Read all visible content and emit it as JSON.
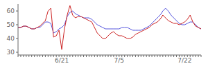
{
  "chart_data": {
    "type": "line",
    "categories": [
      null,
      null,
      null,
      null,
      null,
      null,
      null,
      null,
      null,
      null,
      null,
      null,
      null,
      null,
      null,
      null,
      "6/21",
      null,
      null,
      null,
      null,
      null,
      null,
      null,
      null,
      null,
      null,
      null,
      null,
      null,
      null,
      null,
      null,
      null,
      null,
      null,
      null,
      "7/5",
      null,
      null,
      null,
      null,
      null,
      null,
      null,
      null,
      null,
      null,
      null,
      null,
      null,
      null,
      null,
      null,
      null,
      null,
      null,
      null,
      null,
      null,
      null,
      "7/22",
      null,
      null,
      null,
      null,
      null,
      null
    ],
    "series": [
      {
        "color": "#5555dd",
        "values": [
          48,
          48,
          49,
          49,
          48,
          47,
          47,
          48,
          48,
          50,
          52,
          52,
          51,
          44,
          45,
          47,
          48,
          50,
          56,
          59,
          60,
          58,
          57,
          56,
          55,
          55,
          55,
          54,
          52,
          50,
          49,
          48,
          47,
          47,
          47,
          47,
          47,
          47,
          48,
          48,
          48,
          47,
          46,
          46,
          46,
          46,
          47,
          48,
          49,
          51,
          53,
          55,
          57,
          60,
          62,
          60,
          57,
          55,
          53,
          51,
          50,
          50,
          51,
          52,
          52,
          50,
          48,
          47
        ]
      },
      {
        "color": "#cc2222",
        "values": [
          48,
          48,
          49,
          49,
          48,
          47,
          47,
          48,
          49,
          51,
          53,
          60,
          62,
          41,
          42,
          46,
          32,
          47,
          57,
          64,
          57,
          55,
          56,
          56,
          55,
          54,
          53,
          52,
          48,
          44,
          42,
          40,
          40,
          42,
          44,
          45,
          43,
          42,
          42,
          41,
          40,
          40,
          41,
          43,
          44,
          45,
          46,
          47,
          48,
          50,
          51,
          52,
          54,
          57,
          55,
          53,
          52,
          51,
          51,
          50,
          51,
          52,
          54,
          57,
          52,
          49,
          48,
          47
        ]
      }
    ],
    "ylim": [
      28,
      65
    ],
    "yticks": [
      30,
      40,
      50,
      60
    ],
    "grid": false
  }
}
